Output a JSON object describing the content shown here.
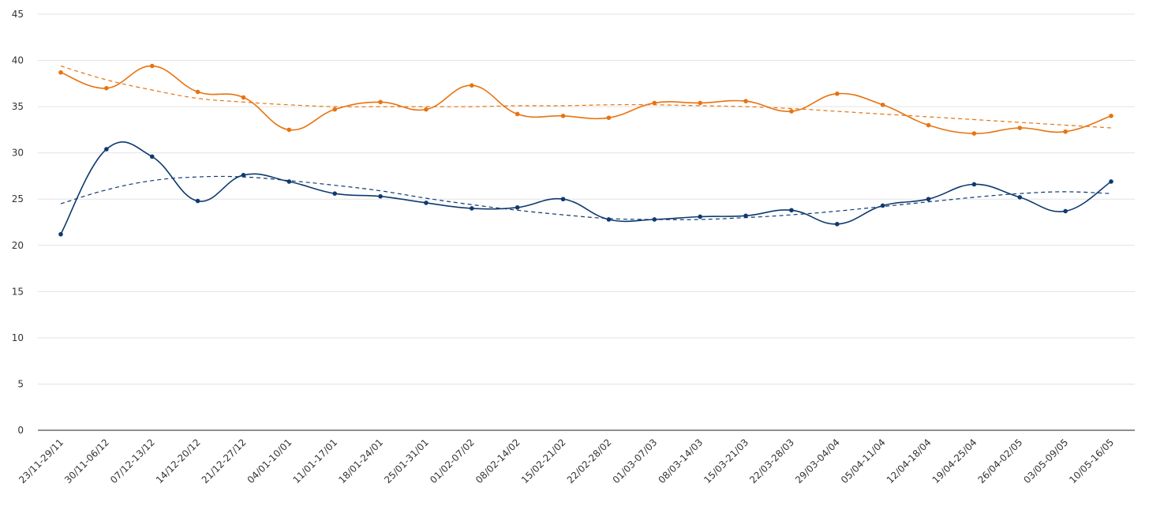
{
  "chart_data": {
    "type": "line",
    "title": "",
    "xlabel": "",
    "ylabel": "",
    "ylim": [
      0,
      45
    ],
    "yticks": [
      0,
      5,
      10,
      15,
      20,
      25,
      30,
      35,
      40,
      45
    ],
    "grid": true,
    "legend": "none",
    "categories": [
      "23/11-29/11",
      "30/11-06/12",
      "07/12-13/12",
      "14/12-20/12",
      "21/12-27/12",
      "04/01-10/01",
      "11/01-17/01",
      "18/01-24/01",
      "25/01-31/01",
      "01/02-07/02",
      "08/02-14/02",
      "15/02-21/02",
      "22/02-28/02",
      "01/03-07/03",
      "08/03-14/03",
      "15/03-21/03",
      "22/03-28/03",
      "29/03-04/04",
      "05/04-11/04",
      "12/04-18/04",
      "19/04-25/04",
      "26/04-02/05",
      "03/05-09/05",
      "10/05-16/05"
    ],
    "series": [
      {
        "color": "#e8730f",
        "values": [
          38.7,
          37.0,
          39.4,
          36.6,
          36.0,
          32.5,
          34.7,
          35.5,
          34.7,
          37.3,
          34.2,
          34.0,
          33.8,
          35.4,
          35.4,
          35.6,
          34.5,
          36.4,
          35.2,
          33.0,
          32.1,
          32.7,
          32.3,
          34.0
        ],
        "trend": [
          39.4,
          37.9,
          36.8,
          35.9,
          35.5,
          35.2,
          35.0,
          35.0,
          35.0,
          35.0,
          35.1,
          35.1,
          35.2,
          35.2,
          35.1,
          35.0,
          34.8,
          34.5,
          34.2,
          33.9,
          33.6,
          33.3,
          33.0,
          32.7
        ]
      },
      {
        "color": "#0e3a6e",
        "values": [
          21.2,
          30.4,
          29.6,
          24.8,
          27.6,
          26.9,
          25.6,
          25.3,
          24.6,
          24.0,
          24.1,
          25.0,
          22.8,
          22.8,
          23.1,
          23.2,
          23.8,
          22.3,
          24.3,
          25.0,
          26.6,
          25.2,
          23.7,
          26.9
        ],
        "trend": [
          24.5,
          26.0,
          27.0,
          27.4,
          27.4,
          27.0,
          26.5,
          25.9,
          25.1,
          24.4,
          23.8,
          23.3,
          22.9,
          22.8,
          22.8,
          23.0,
          23.3,
          23.7,
          24.2,
          24.7,
          25.2,
          25.6,
          25.8,
          25.6
        ]
      }
    ]
  }
}
